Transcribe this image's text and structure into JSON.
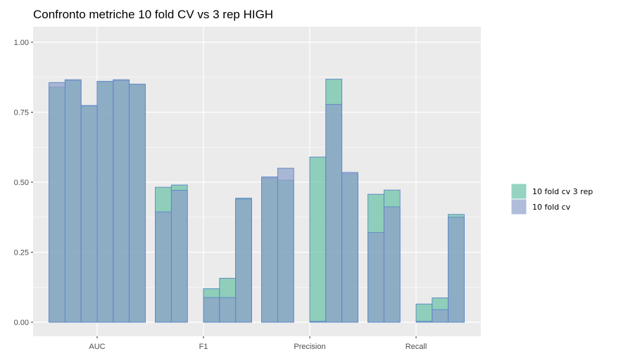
{
  "chart_data": {
    "type": "bar",
    "title": "Confronto metriche 10 fold CV vs 3 rep HIGH",
    "xlabel": "",
    "ylabel": "",
    "categories": [
      "AUC",
      "F1",
      "Precision",
      "Recall"
    ],
    "bars_per_category": 6,
    "ylim": [
      0,
      1
    ],
    "yticks": [
      {
        "value": 0,
        "label": "0.00"
      },
      {
        "value": 0.25,
        "label": "0.25"
      },
      {
        "value": 0.5,
        "label": "0.50"
      },
      {
        "value": 0.75,
        "label": "0.75"
      },
      {
        "value": 1,
        "label": "1.00"
      }
    ],
    "grid": true,
    "legend_position": "right",
    "series": [
      {
        "name": "10 fold cv 3 rep",
        "color": "#66c2a5",
        "values": [
          [
            0.84,
            0.863,
            0.774,
            0.86,
            0.863,
            0.85
          ],
          [
            0.482,
            0.49,
            0,
            0.12,
            0.157,
            0.443
          ],
          [
            0.515,
            0.507,
            0,
            0.59,
            0.868,
            0.53
          ],
          [
            0.457,
            0.472,
            0,
            0.065,
            0.087,
            0.385
          ]
        ]
      },
      {
        "name": "10 fold cv",
        "color": "#8da0cb",
        "values": [
          [
            0.856,
            0.866,
            0.773,
            0.86,
            0.866,
            0.85
          ],
          [
            0.394,
            0.471,
            0,
            0.088,
            0.088,
            0.44
          ],
          [
            0.519,
            0.55,
            0,
            0.003,
            0.778,
            0.535
          ],
          [
            0.32,
            0.412,
            0,
            0.003,
            0.045,
            0.375
          ]
        ]
      }
    ]
  }
}
